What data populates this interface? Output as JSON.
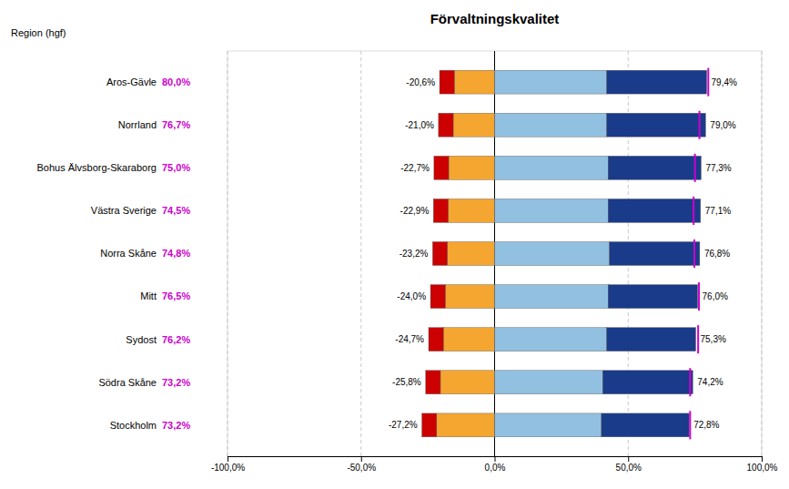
{
  "chart_data": {
    "type": "bar",
    "orientation": "horizontal",
    "stacked": true,
    "title": "Förvaltningskvalitet",
    "ylabel": "Region (hgf)",
    "categories": [
      "Aros-Gävle",
      "Norrland",
      "Bohus Älvsborg-Skaraborg",
      "Västra Sverige",
      "Norra Skåne",
      "Mitt",
      "Sydost",
      "Södra Skåne",
      "Stockholm"
    ],
    "series": [
      {
        "color": "#f5a630",
        "values": [
          -15.1,
          -15.5,
          -17.2,
          -17.4,
          -17.7,
          -18.5,
          -19.2,
          -20.3,
          -21.7
        ]
      },
      {
        "color": "#cc0000",
        "values": [
          -5.5,
          -5.5,
          -5.5,
          -5.5,
          -5.5,
          -5.5,
          -5.5,
          -5.5,
          -5.5
        ]
      },
      {
        "color": "#92c0e0",
        "values": [
          42.0,
          42.0,
          42.5,
          42.5,
          43.0,
          42.5,
          42.0,
          40.5,
          40.0
        ]
      },
      {
        "color": "#1a3a8a",
        "values": [
          37.4,
          37.0,
          34.8,
          34.6,
          33.8,
          33.5,
          33.3,
          33.7,
          32.8
        ]
      },
      {
        "type": "scatter",
        "marker": "vline",
        "color": "#cc00cc",
        "values": [
          80.0,
          76.7,
          75.0,
          74.5,
          74.8,
          76.5,
          76.2,
          73.2,
          73.2
        ],
        "value_labels": [
          "80,0%",
          "76,7%",
          "75,0%",
          "74,5%",
          "74,8%",
          "76,5%",
          "76,2%",
          "73,2%",
          "73,2%"
        ]
      }
    ],
    "negative_totals": {
      "values": [
        -20.6,
        -21.0,
        -22.7,
        -22.9,
        -23.2,
        -24.0,
        -24.7,
        -25.8,
        -27.2
      ],
      "value_labels": [
        "-20,6%",
        "-21,0%",
        "-22,7%",
        "-22,9%",
        "-23,2%",
        "-24,0%",
        "-24,7%",
        "-25,8%",
        "-27,2%"
      ]
    },
    "positive_totals": {
      "values": [
        79.4,
        79.0,
        77.3,
        77.1,
        76.8,
        76.0,
        75.3,
        74.2,
        72.8
      ],
      "value_labels": [
        "79,4%",
        "79,0%",
        "77,3%",
        "77,1%",
        "76,8%",
        "76,0%",
        "75,3%",
        "74,2%",
        "72,8%"
      ]
    },
    "xlim": [
      -100,
      100
    ],
    "xticks": [
      {
        "value": -100,
        "label": "-100,0%"
      },
      {
        "value": -50,
        "label": "-50,0%"
      },
      {
        "value": 0,
        "label": "0,0%"
      },
      {
        "value": 50,
        "label": "50,0%"
      },
      {
        "value": 100,
        "label": "100,0%"
      }
    ],
    "grid": true
  }
}
